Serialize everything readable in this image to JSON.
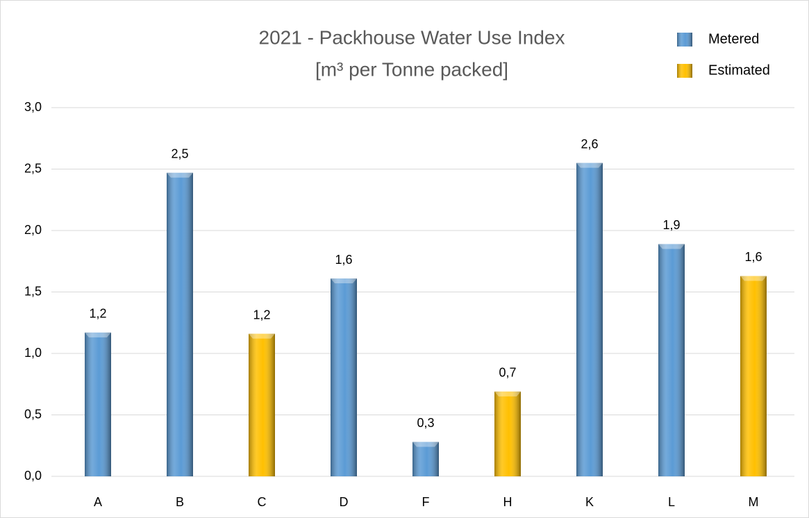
{
  "chart_data": {
    "type": "bar",
    "title": "2021 - Packhouse Water Use Index",
    "subtitle": "[m³ per Tonne packed]",
    "categories": [
      "A",
      "B",
      "C",
      "D",
      "F",
      "H",
      "K",
      "L",
      "M"
    ],
    "series": [
      {
        "name": "Metered",
        "color": "#5b9bd5",
        "values": [
          1.17,
          2.47,
          null,
          1.61,
          0.28,
          null,
          2.55,
          1.89,
          null
        ],
        "value_labels": [
          "1,2",
          "2,5",
          null,
          "1,6",
          "0,3",
          null,
          "2,6",
          "1,9",
          null
        ]
      },
      {
        "name": "Estimated",
        "color": "#ffc000",
        "values": [
          null,
          null,
          1.16,
          null,
          null,
          0.69,
          null,
          null,
          1.63
        ],
        "value_labels": [
          null,
          null,
          "1,2",
          null,
          null,
          "0,7",
          null,
          null,
          "1,6"
        ]
      }
    ],
    "ylim": [
      0,
      3
    ],
    "yticks": [
      {
        "value": 0,
        "label": "0,0"
      },
      {
        "value": 0.5,
        "label": "0,5"
      },
      {
        "value": 1,
        "label": "1,0"
      },
      {
        "value": 1.5,
        "label": "1,5"
      },
      {
        "value": 2,
        "label": "2,0"
      },
      {
        "value": 2.5,
        "label": "2,5"
      },
      {
        "value": 3,
        "label": "3,0"
      }
    ],
    "grid": true,
    "legend": "top-right"
  }
}
